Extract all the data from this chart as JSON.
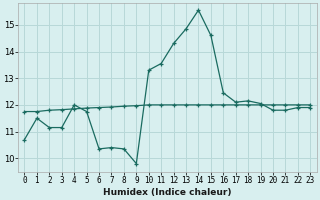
{
  "xlabel": "Humidex (Indice chaleur)",
  "xlim": [
    -0.5,
    23.5
  ],
  "ylim": [
    9.5,
    15.8
  ],
  "yticks": [
    10,
    11,
    12,
    13,
    14,
    15
  ],
  "xticks": [
    0,
    1,
    2,
    3,
    4,
    5,
    6,
    7,
    8,
    9,
    10,
    11,
    12,
    13,
    14,
    15,
    16,
    17,
    18,
    19,
    20,
    21,
    22,
    23
  ],
  "bg_color": "#d8efef",
  "grid_color": "#b8d8d8",
  "line_color": "#1a6b60",
  "line1_x": [
    0,
    1,
    2,
    3,
    4,
    5,
    6,
    7,
    8,
    9,
    10,
    11,
    12,
    13,
    14,
    15,
    16,
    17,
    18,
    19,
    20,
    21,
    22,
    23
  ],
  "line1_y": [
    10.7,
    11.5,
    11.15,
    11.15,
    12.0,
    11.75,
    10.35,
    10.4,
    10.35,
    9.8,
    13.3,
    13.55,
    14.3,
    14.85,
    15.55,
    14.6,
    12.45,
    12.1,
    12.15,
    12.05,
    11.8,
    11.8,
    11.9,
    11.9
  ],
  "line2_x": [
    0,
    1,
    2,
    3,
    4,
    5,
    6,
    7,
    8,
    9,
    10,
    11,
    12,
    13,
    14,
    15,
    16,
    17,
    18,
    19,
    20,
    21,
    22,
    23
  ],
  "line2_y": [
    11.75,
    11.75,
    11.8,
    11.82,
    11.85,
    11.88,
    11.9,
    11.92,
    11.95,
    11.97,
    12.0,
    12.0,
    12.0,
    12.0,
    12.0,
    12.0,
    12.0,
    12.0,
    12.0,
    12.0,
    12.0,
    12.0,
    12.0,
    12.0
  ]
}
